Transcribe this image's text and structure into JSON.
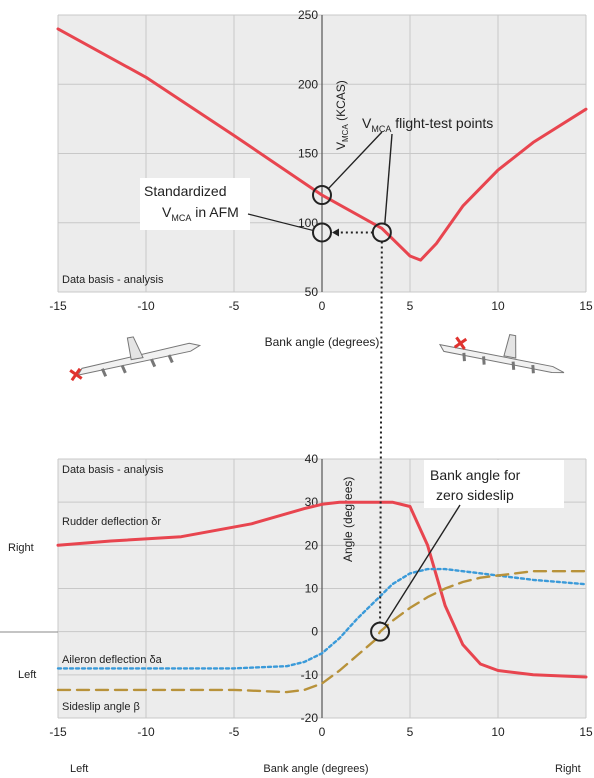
{
  "chart_data": [
    {
      "type": "line",
      "x_title": "Bank angle (degrees)",
      "y_title_main": "V",
      "y_title_sub": "MCA",
      "y_title_tail": " (KCAS)",
      "xlim": [
        -15,
        15
      ],
      "ylim": [
        50,
        250
      ],
      "x_ticks": [
        "-15",
        "-10",
        "-5",
        "0",
        "5",
        "10",
        "15"
      ],
      "y_ticks": [
        "50",
        "100",
        "150",
        "200",
        "250"
      ],
      "grid": true,
      "series": [
        {
          "color": "#e8454f",
          "x": [
            -15,
            -10,
            -5,
            0,
            3.4,
            5,
            5.6,
            6.5,
            8,
            10,
            12,
            15
          ],
          "y": [
            240,
            205,
            163,
            120,
            96,
            76,
            73,
            85,
            112,
            138,
            158,
            182
          ]
        }
      ],
      "flight_test_points": [
        {
          "x": 0,
          "y": 120
        },
        {
          "x": 3.4,
          "y": 93
        }
      ],
      "standardized_point": {
        "x": 0,
        "y": 93
      },
      "annotations": {
        "basis": "Data basis - analysis",
        "flight_test_main": "V",
        "flight_test_sub": "MCA",
        "flight_test_tail": " flight-test points",
        "standardized_line1": "Standardized",
        "standardized_line2_main": "V",
        "standardized_line2_sub": "MCA",
        "standardized_line2_tail": " in AFM"
      }
    },
    {
      "type": "line",
      "x_title": "Bank angle (degrees)",
      "y_title": "Angle (degrees)",
      "xlim": [
        -15,
        15
      ],
      "ylim": [
        -20,
        40
      ],
      "x_ticks": [
        "-15",
        "-10",
        "-5",
        "0",
        "5",
        "10",
        "15"
      ],
      "y_ticks": [
        "-20",
        "-10",
        "0",
        "10",
        "20",
        "30",
        "40"
      ],
      "grid": true,
      "series": [
        {
          "name": "Rudder deflection δr",
          "color": "#e8454f",
          "style": "solid",
          "x": [
            -15,
            -12,
            -8,
            -4,
            -1,
            0,
            1,
            2,
            3,
            4,
            5,
            6,
            7,
            8,
            9,
            10,
            12,
            15
          ],
          "y": [
            20,
            21,
            22,
            25,
            28.5,
            29.5,
            30,
            30,
            30,
            30,
            29,
            20,
            6,
            -3,
            -7.5,
            -9,
            -10,
            -10.5
          ]
        },
        {
          "name": "Aileron deflection δa",
          "color": "#3a9ad9",
          "style": "dotted",
          "x": [
            -15,
            -10,
            -5,
            -2,
            -1,
            0,
            1,
            2,
            3,
            4,
            5,
            6,
            7,
            8,
            10,
            12,
            15
          ],
          "y": [
            -8.5,
            -8.5,
            -8.5,
            -8,
            -7,
            -5,
            -1.5,
            3,
            7,
            11,
            13.5,
            14.5,
            14.5,
            14,
            13,
            12,
            11
          ]
        },
        {
          "name": "Sideslip angle β",
          "color": "#b8923a",
          "style": "dashed",
          "x": [
            -15,
            -10,
            -5,
            -2,
            -1,
            0,
            1,
            2,
            3,
            3.3,
            4,
            5,
            6,
            7,
            8,
            9,
            10,
            12,
            15
          ],
          "y": [
            -13.5,
            -13.5,
            -13.5,
            -14,
            -13.5,
            -12,
            -9,
            -5.5,
            -2,
            0,
            2.5,
            5.5,
            8,
            10,
            11.5,
            12.5,
            13,
            14,
            14
          ]
        }
      ],
      "zero_sideslip_point": {
        "x": 3.3,
        "y": 0
      },
      "annotations": {
        "basis": "Data basis - analysis",
        "zero_sideslip_line1": "Bank angle for",
        "zero_sideslip_line2": "zero sideslip",
        "right_label": "Right",
        "left_label": "Left",
        "x_left_label": "Left",
        "x_right_label": "Right"
      }
    }
  ]
}
